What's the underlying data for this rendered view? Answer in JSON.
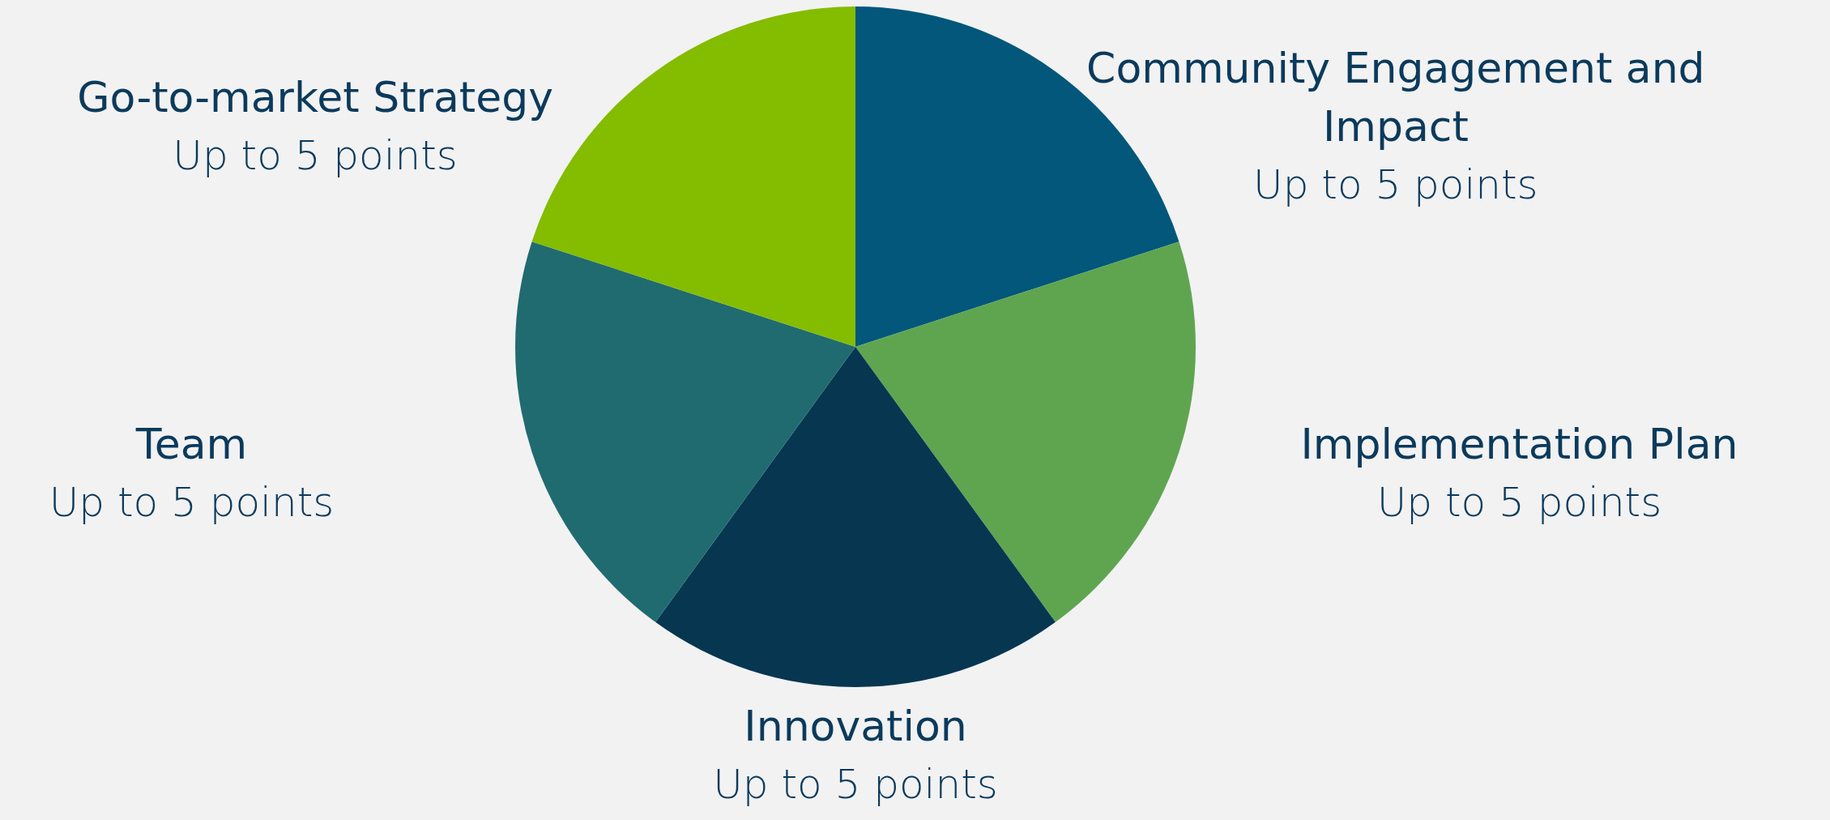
{
  "chart_data": {
    "type": "pie",
    "categories": [
      "Community Engagement and Impact",
      "Implementation Plan",
      "Innovation",
      "Team",
      "Go-to-market Strategy"
    ],
    "values": [
      5,
      5,
      5,
      5,
      5
    ],
    "value_labels": [
      "Up to 5 points",
      "Up to 5 points",
      "Up to 5 points",
      "Up to 5 points",
      "Up to 5 points"
    ],
    "colors": [
      "#02577a",
      "#5fa550",
      "#073651",
      "#206b70",
      "#84bc00"
    ],
    "legend": false
  }
}
